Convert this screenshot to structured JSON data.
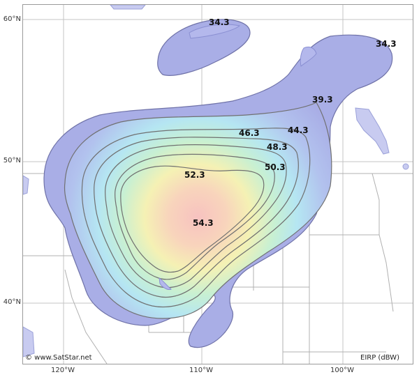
{
  "map": {
    "latitudes": [
      "60°N",
      "50°N",
      "40°N"
    ],
    "longitudes": [
      "120°W",
      "110°W",
      "100°W"
    ],
    "credit": "© www.SatStar.net",
    "units": "EIRP (dBW)",
    "contour_labels": [
      "34.3",
      "34.3",
      "39.3",
      "44.3",
      "46.3",
      "48.3",
      "50.3",
      "52.3",
      "54.3"
    ],
    "colors": {
      "outer": "#a9aee6",
      "core": "#f8c8c4",
      "water": "#b4b8ec",
      "grid": "#b8b8b8",
      "border": "#aaaaaa"
    }
  }
}
